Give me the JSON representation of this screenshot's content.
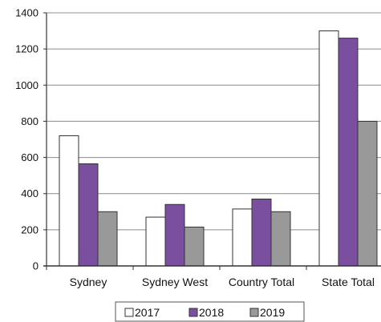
{
  "chart_data": {
    "type": "bar",
    "categories": [
      "Sydney",
      "Sydney West",
      "Country Total",
      "State Total"
    ],
    "series": [
      {
        "name": "2017",
        "values": [
          720,
          270,
          315,
          1300
        ],
        "color": "#ffffff"
      },
      {
        "name": "2018",
        "values": [
          565,
          340,
          370,
          1260
        ],
        "color": "#7b4fa0"
      },
      {
        "name": "2019",
        "values": [
          300,
          215,
          300,
          800
        ],
        "color": "#999999"
      }
    ],
    "y_ticks": [
      0,
      200,
      400,
      600,
      800,
      1000,
      1200,
      1400
    ],
    "ylim": [
      0,
      1400
    ],
    "grid": true,
    "legend_position": "bottom",
    "title": "",
    "xlabel": "",
    "ylabel": ""
  }
}
